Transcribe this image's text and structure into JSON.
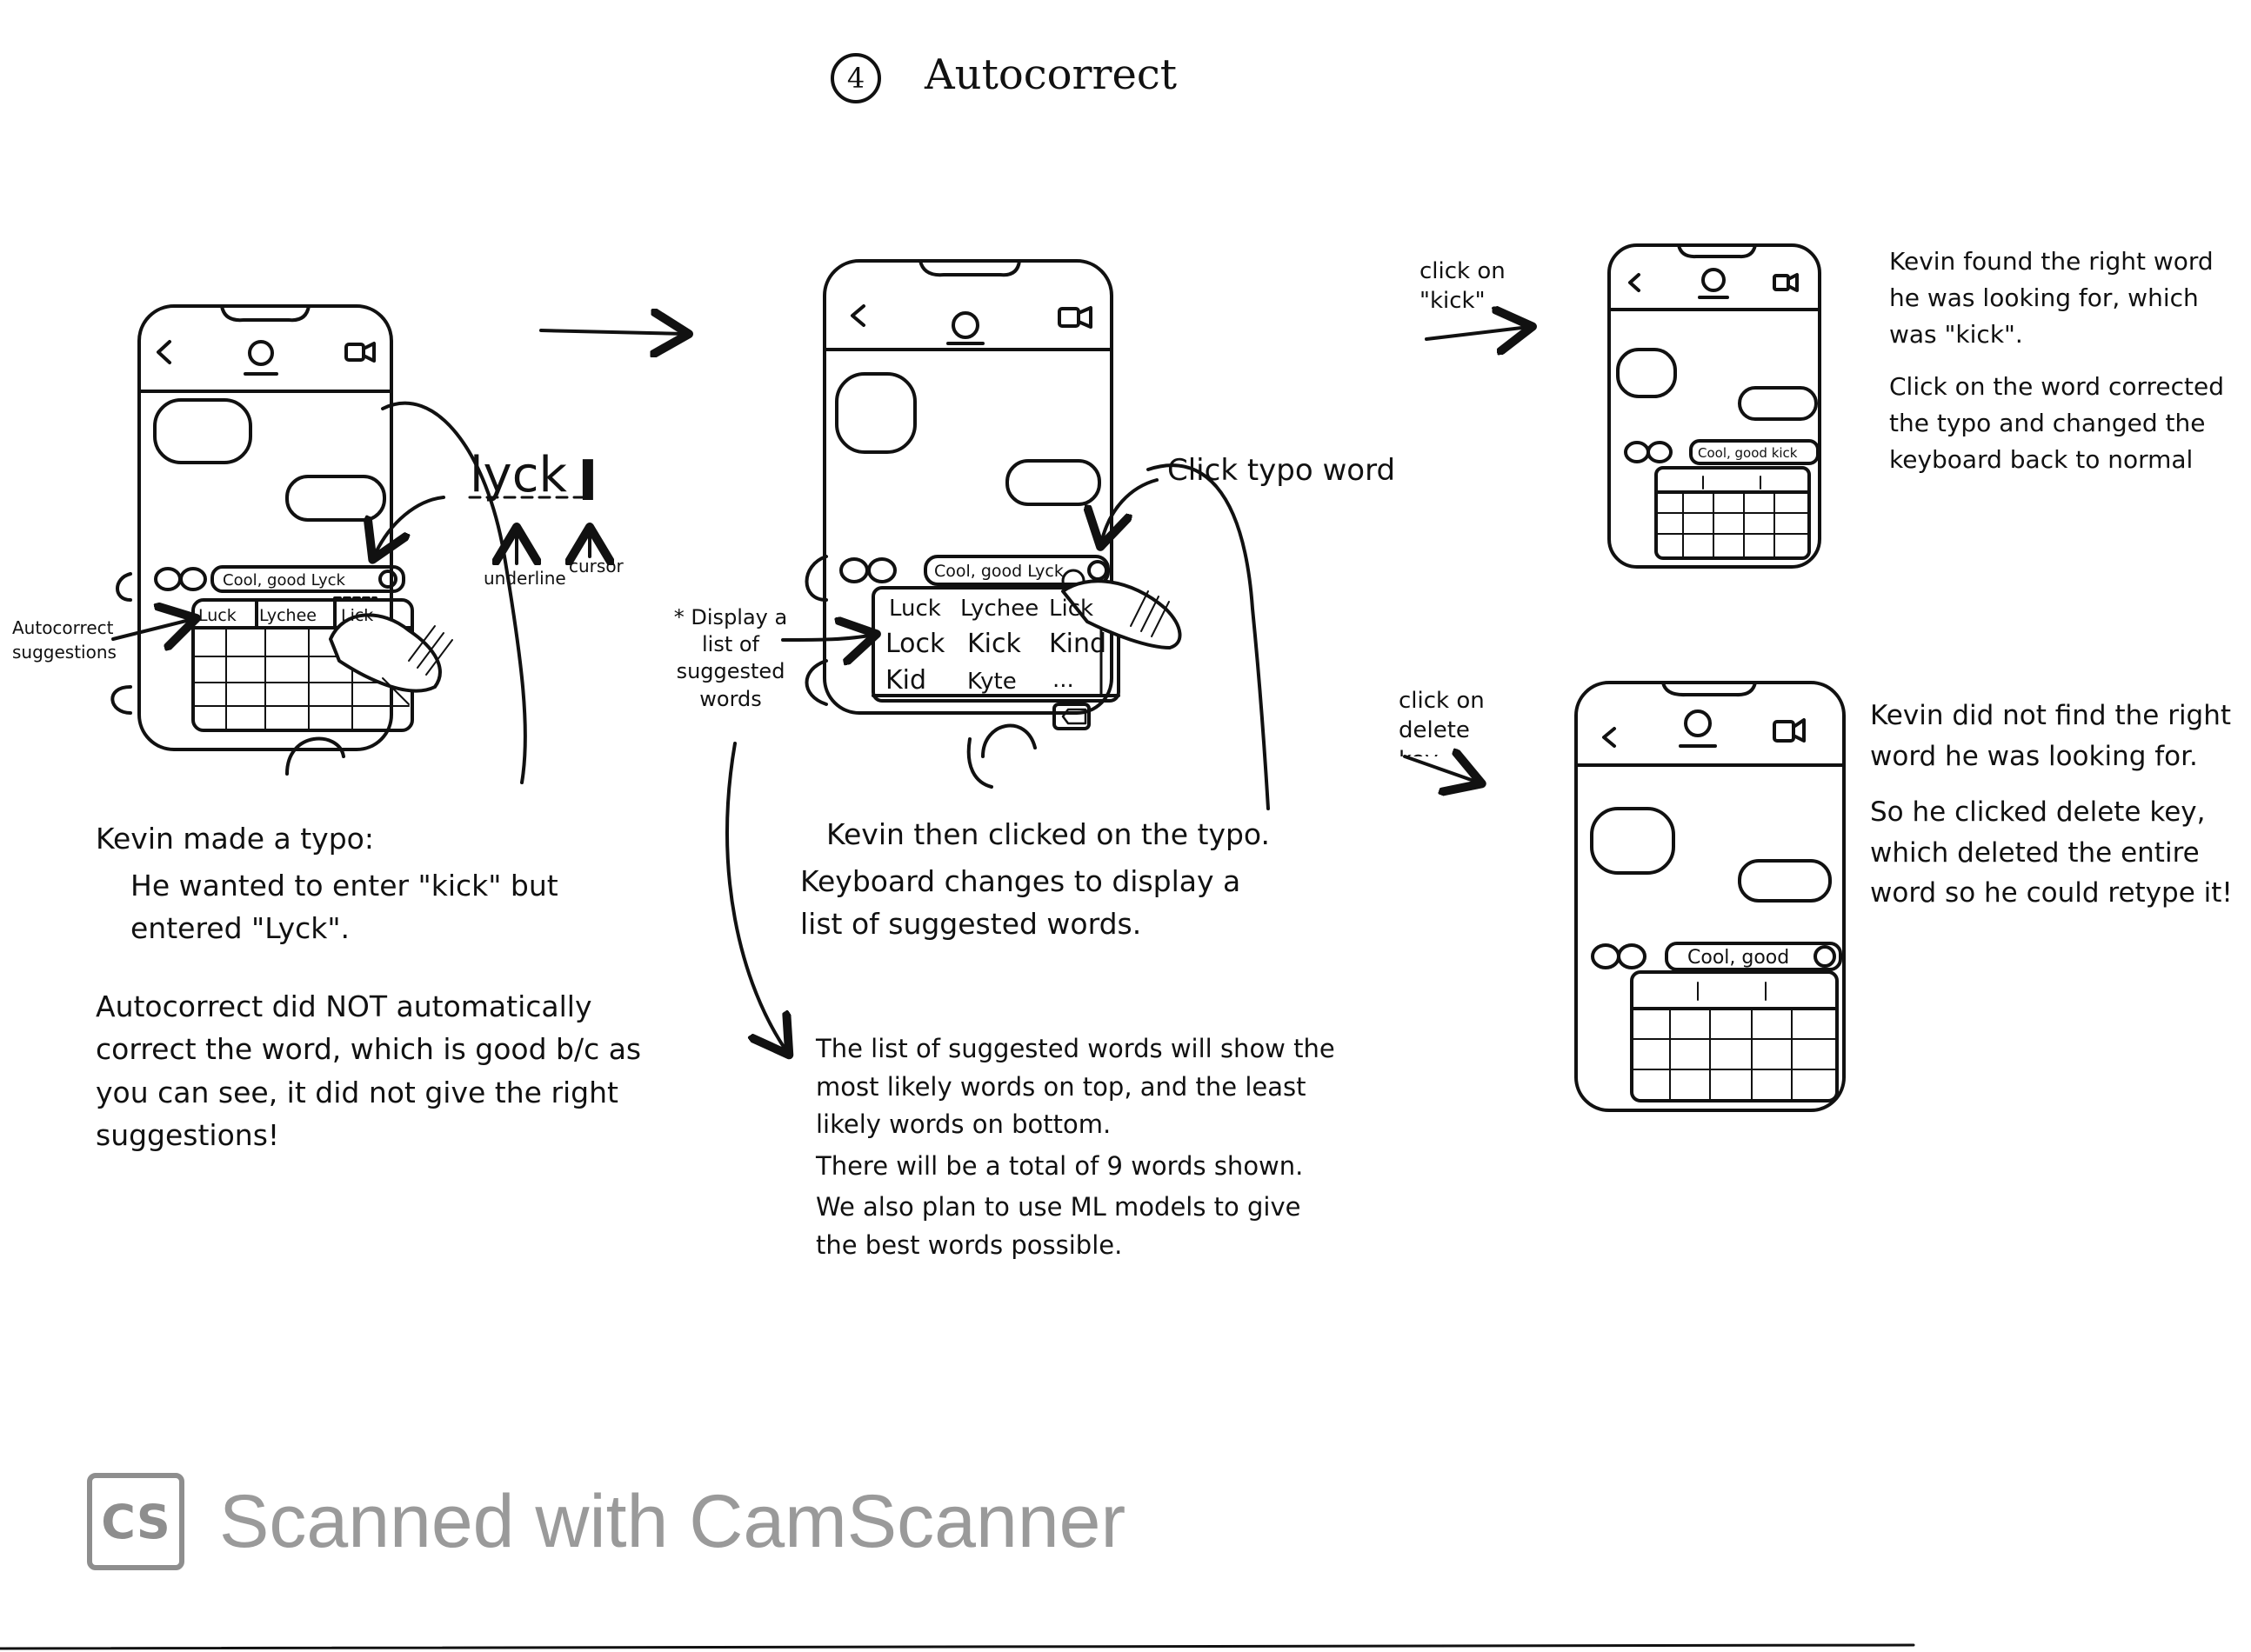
{
  "title": {
    "number": "4",
    "text": "Autocorrect"
  },
  "phone1": {
    "suggestion_bar": "Cool, good Lyck",
    "suggestions": [
      "Luck",
      "Lychee",
      "Lick"
    ]
  },
  "phone1_callouts": {
    "typed_word": "lyck",
    "underline": "underline",
    "cursor": "cursor",
    "autocorrect_label": "Autocorrect suggestions"
  },
  "phone2": {
    "suggestion_bar": "Cool, good Lyck",
    "grid": [
      "Luck",
      "Lychee",
      "Lick",
      "Lock",
      "Kick",
      "Kind",
      "Kid",
      "Kyte",
      "..."
    ]
  },
  "phone2_callouts": {
    "click_typo": "Click typo word",
    "display_list": "* Display a list of suggested words"
  },
  "phone3": {
    "suggestion_bar": "Cool, good kick"
  },
  "phone4": {
    "suggestion_bar": "Cool, good"
  },
  "arrows": {
    "click_kick": "click on \"kick\"",
    "click_delete": "click on delete key"
  },
  "notes": {
    "step1_a": "Kevin made a typo:",
    "step1_b": "He wanted to enter \"kick\" but entered \"Lyck\".",
    "step1_c": "Autocorrect did NOT automatically correct the word, which is good b/c as you can see, it did not give the right suggestions!",
    "step2_a": "Kevin then clicked on the typo.",
    "step2_b": "Keyboard changes to display a list of suggested words.",
    "list_1": "The list of suggested words will show the most likely words on top, and the least likely words on bottom.",
    "list_2": "There will be a total of 9 words shown.",
    "list_3": "We also plan to use ML models to give the best words possible.",
    "step3_a": "Kevin found the right word he was looking for, which was \"kick\".",
    "step3_b": "Click on the word corrected the typo and changed the keyboard back to normal",
    "step4_a": "Kevin did not find the right word he was looking for.",
    "step4_b": "So he clicked delete key, which deleted the entire word so he could retype it!"
  },
  "watermark": {
    "logo": "CS",
    "text": "Scanned with CamScanner"
  }
}
